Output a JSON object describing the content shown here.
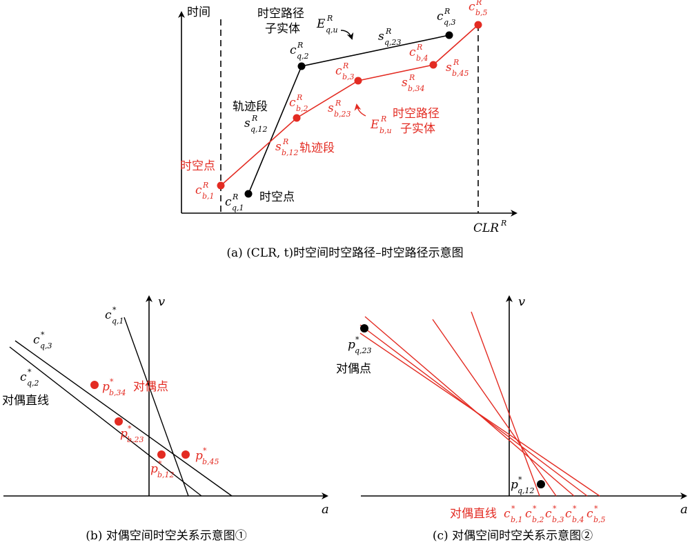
{
  "colors": {
    "black": "#000000",
    "red": "#e32b22"
  },
  "panel_a": {
    "caption": "(a) (CLR, t)时空间时空路径–时空路径示意图",
    "y_axis": "时间",
    "x_axis": "CLR",
    "x_axis_sup": "R",
    "black_entity_label": [
      "时空路径",
      "子实体"
    ],
    "black_entity_symbol": {
      "base": "E",
      "sup": "R",
      "sub": "q,u"
    },
    "black_segment_label": "轨迹段",
    "black_point_label": "时空点",
    "red_entity_label": [
      "时空路径",
      "子实体"
    ],
    "red_entity_symbol": {
      "base": "E",
      "sup": "R",
      "sub": "b,u"
    },
    "red_segment_label": "轨迹段",
    "red_point_label": "时空点",
    "black_points": [
      {
        "base": "c",
        "sup": "R",
        "sub": "q,1"
      },
      {
        "base": "c",
        "sup": "R",
        "sub": "q,2"
      },
      {
        "base": "c",
        "sup": "R",
        "sub": "q,3"
      }
    ],
    "red_points": [
      {
        "base": "c",
        "sup": "R",
        "sub": "b,1"
      },
      {
        "base": "c",
        "sup": "R",
        "sub": "b,2"
      },
      {
        "base": "c",
        "sup": "R",
        "sub": "b,3"
      },
      {
        "base": "c",
        "sup": "R",
        "sub": "b,4"
      },
      {
        "base": "c",
        "sup": "R",
        "sub": "b,5"
      }
    ],
    "black_segments": [
      {
        "base": "s",
        "sup": "R",
        "sub": "q,12"
      },
      {
        "base": "s",
        "sup": "R",
        "sub": "q,23"
      }
    ],
    "red_segments": [
      {
        "base": "s",
        "sup": "R",
        "sub": "b,12"
      },
      {
        "base": "s",
        "sup": "R",
        "sub": "b,23"
      },
      {
        "base": "s",
        "sup": "R",
        "sub": "b,34"
      },
      {
        "base": "s",
        "sup": "R",
        "sub": "b,45"
      }
    ]
  },
  "panel_b": {
    "caption": "(b) 对偶空间时空关系示意图①",
    "x_axis": "a",
    "y_axis": "v",
    "line_labels": [
      {
        "base": "c",
        "sup": "*",
        "sub": "q,1"
      },
      {
        "base": "c",
        "sup": "*",
        "sub": "q,3"
      },
      {
        "base": "c",
        "sup": "*",
        "sub": "q,2"
      }
    ],
    "dual_line_text": "对偶直线",
    "dual_point_text": "对偶点",
    "points": [
      {
        "base": "p",
        "sup": "*",
        "sub": "b,34"
      },
      {
        "base": "p",
        "sup": "*",
        "sub": "b,23"
      },
      {
        "base": "p",
        "sup": "*",
        "sub": "b,12"
      },
      {
        "base": "p",
        "sup": "*",
        "sub": "b,45"
      }
    ]
  },
  "panel_c": {
    "caption": "(c) 对偶空间时空关系示意图②",
    "x_axis": "a",
    "y_axis": "v",
    "dual_point_text": "对偶点",
    "dual_line_text": "对偶直线",
    "points": [
      {
        "base": "p",
        "sup": "*",
        "sub": "q,23"
      },
      {
        "base": "p",
        "sup": "*",
        "sub": "q,12"
      }
    ],
    "line_labels": [
      {
        "base": "c",
        "sup": "*",
        "sub": "b,1"
      },
      {
        "base": "c",
        "sup": "*",
        "sub": "b,2"
      },
      {
        "base": "c",
        "sup": "*",
        "sub": "b,3"
      },
      {
        "base": "c",
        "sup": "*",
        "sub": "b,4"
      },
      {
        "base": "c",
        "sup": "*",
        "sub": "b,5"
      }
    ]
  }
}
